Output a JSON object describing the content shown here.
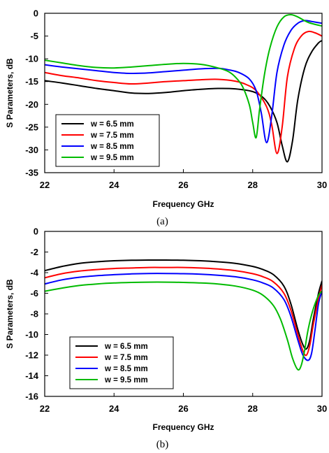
{
  "chart_data": [
    {
      "type": "line",
      "panel_caption": "(a)",
      "xlabel": "Frequency GHz",
      "ylabel": "S Parameters, dB",
      "xlim": [
        22,
        30
      ],
      "ylim": [
        -35,
        0
      ],
      "xticks": [
        22,
        24,
        26,
        28,
        30
      ],
      "yticks": [
        0,
        -5,
        -10,
        -15,
        -20,
        -25,
        -30,
        -35
      ],
      "grid": false,
      "legend_position": "bottom-left",
      "series": [
        {
          "name": "w = 6.5 mm",
          "color": "#000000",
          "x": [
            22,
            22.5,
            23,
            23.5,
            24,
            24.5,
            25,
            25.5,
            26,
            26.5,
            27,
            27.5,
            28,
            28.3,
            28.5,
            28.7,
            28.85,
            29.0,
            29.15,
            29.3,
            29.5,
            29.7,
            29.9,
            30
          ],
          "y": [
            -14.8,
            -15.3,
            -15.9,
            -16.5,
            -17.0,
            -17.5,
            -17.6,
            -17.4,
            -17.0,
            -16.7,
            -16.5,
            -16.6,
            -17.2,
            -18.5,
            -20.5,
            -24.0,
            -29.0,
            -32.6,
            -28.0,
            -19.0,
            -12.0,
            -8.5,
            -6.5,
            -6.0
          ]
        },
        {
          "name": "w = 7.5 mm",
          "color": "#ff0000",
          "x": [
            22,
            22.5,
            23,
            23.5,
            24,
            24.5,
            25,
            25.5,
            26,
            26.5,
            27,
            27.5,
            27.8,
            28.1,
            28.4,
            28.55,
            28.7,
            28.85,
            29.0,
            29.2,
            29.4,
            29.6,
            29.8,
            30
          ],
          "y": [
            -13.0,
            -13.7,
            -14.2,
            -14.8,
            -15.2,
            -15.5,
            -15.3,
            -15.0,
            -14.8,
            -14.6,
            -14.5,
            -14.9,
            -15.6,
            -17.0,
            -20.5,
            -24.5,
            -30.8,
            -25.0,
            -14.0,
            -7.8,
            -5.0,
            -4.0,
            -4.3,
            -5.0
          ]
        },
        {
          "name": "w = 8.5 mm",
          "color": "#0000ff",
          "x": [
            22,
            22.5,
            23,
            23.5,
            24,
            24.5,
            25,
            25.5,
            26,
            26.5,
            27,
            27.3,
            27.6,
            27.9,
            28.1,
            28.25,
            28.4,
            28.55,
            28.7,
            28.9,
            29.1,
            29.3,
            29.5,
            29.7,
            30
          ],
          "y": [
            -11.3,
            -11.8,
            -12.2,
            -12.6,
            -13.0,
            -13.2,
            -13.1,
            -12.8,
            -12.5,
            -12.2,
            -12.1,
            -12.4,
            -13.0,
            -14.4,
            -17.0,
            -22.0,
            -28.4,
            -22.5,
            -13.0,
            -7.0,
            -3.8,
            -2.2,
            -1.6,
            -1.8,
            -2.2
          ]
        },
        {
          "name": "w = 9.5 mm",
          "color": "#00bb00",
          "x": [
            22,
            22.5,
            23,
            23.5,
            24,
            24.5,
            25,
            25.5,
            26,
            26.5,
            27,
            27.3,
            27.5,
            27.7,
            27.9,
            28.0,
            28.1,
            28.2,
            28.35,
            28.5,
            28.7,
            28.9,
            29.1,
            29.3,
            29.6,
            30
          ],
          "y": [
            -10.3,
            -10.9,
            -11.5,
            -11.9,
            -12.0,
            -11.8,
            -11.5,
            -11.2,
            -11.0,
            -11.2,
            -12.0,
            -12.8,
            -14.0,
            -16.0,
            -20.0,
            -24.0,
            -27.3,
            -21.0,
            -13.0,
            -7.5,
            -3.0,
            -0.8,
            -0.3,
            -0.8,
            -2.0,
            -2.8
          ]
        }
      ]
    },
    {
      "type": "line",
      "panel_caption": "(b)",
      "xlabel": "Frequency GHz",
      "ylabel": "S Parameters, dB",
      "xlim": [
        22,
        30
      ],
      "ylim": [
        -16,
        0
      ],
      "xticks": [
        22,
        24,
        26,
        28,
        30
      ],
      "yticks": [
        0,
        -2,
        -4,
        -6,
        -8,
        -10,
        -12,
        -14,
        -16
      ],
      "grid": false,
      "legend_position": "bottom-left",
      "series": [
        {
          "name": "w = 6.5 mm",
          "color": "#000000",
          "x": [
            22,
            22.5,
            23,
            23.5,
            24,
            24.5,
            25,
            25.5,
            26,
            26.5,
            27,
            27.5,
            28,
            28.3,
            28.6,
            28.9,
            29.1,
            29.3,
            29.45,
            29.55,
            29.65,
            29.75,
            29.9,
            30
          ],
          "y": [
            -3.8,
            -3.4,
            -3.1,
            -2.95,
            -2.85,
            -2.8,
            -2.78,
            -2.78,
            -2.8,
            -2.85,
            -2.95,
            -3.1,
            -3.4,
            -3.7,
            -4.2,
            -5.3,
            -7.0,
            -9.5,
            -11.0,
            -11.4,
            -10.5,
            -8.5,
            -6.0,
            -4.8
          ]
        },
        {
          "name": "w = 7.5 mm",
          "color": "#ff0000",
          "x": [
            22,
            22.5,
            23,
            23.5,
            24,
            24.5,
            25,
            25.5,
            26,
            26.5,
            27,
            27.5,
            28,
            28.3,
            28.6,
            28.9,
            29.1,
            29.3,
            29.45,
            29.55,
            29.65,
            29.75,
            29.9,
            30
          ],
          "y": [
            -4.5,
            -4.1,
            -3.85,
            -3.7,
            -3.6,
            -3.55,
            -3.5,
            -3.5,
            -3.5,
            -3.55,
            -3.65,
            -3.8,
            -4.1,
            -4.4,
            -4.9,
            -6.0,
            -7.6,
            -10.0,
            -11.6,
            -12.0,
            -11.0,
            -9.0,
            -6.5,
            -5.2
          ]
        },
        {
          "name": "w = 8.5 mm",
          "color": "#0000ff",
          "x": [
            22,
            22.5,
            23,
            23.5,
            24,
            24.5,
            25,
            25.5,
            26,
            26.5,
            27,
            27.5,
            28,
            28.3,
            28.6,
            28.9,
            29.1,
            29.3,
            29.45,
            29.6,
            29.7,
            29.8,
            29.9,
            30
          ],
          "y": [
            -5.1,
            -4.7,
            -4.45,
            -4.3,
            -4.2,
            -4.12,
            -4.08,
            -4.08,
            -4.1,
            -4.15,
            -4.25,
            -4.4,
            -4.7,
            -5.0,
            -5.5,
            -6.6,
            -8.2,
            -10.5,
            -12.0,
            -12.5,
            -11.8,
            -9.5,
            -7.0,
            -5.8
          ]
        },
        {
          "name": "w = 9.5 mm",
          "color": "#00bb00",
          "x": [
            22,
            22.5,
            23,
            23.5,
            24,
            24.5,
            25,
            25.5,
            26,
            26.5,
            27,
            27.5,
            28,
            28.3,
            28.6,
            28.8,
            29.0,
            29.15,
            29.3,
            29.4,
            29.5,
            29.6,
            29.75,
            29.9,
            30
          ],
          "y": [
            -5.8,
            -5.5,
            -5.25,
            -5.1,
            -5.0,
            -4.95,
            -4.92,
            -4.92,
            -4.95,
            -5.0,
            -5.1,
            -5.3,
            -5.7,
            -6.2,
            -7.2,
            -8.5,
            -10.5,
            -12.3,
            -13.4,
            -13.0,
            -11.5,
            -9.5,
            -7.5,
            -6.2,
            -5.8
          ]
        }
      ]
    }
  ]
}
